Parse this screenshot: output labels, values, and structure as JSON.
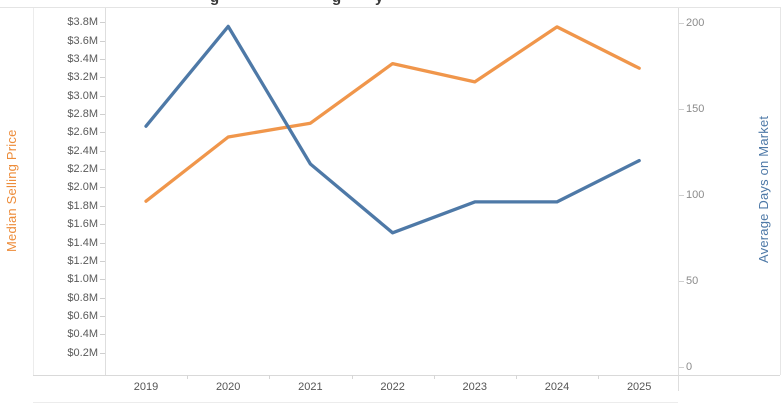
{
  "header": {
    "note": "page title cropped at top edge; only letter descenders visible",
    "cropped_title_descenders": [
      "g",
      "g",
      "y"
    ]
  },
  "left_axis": {
    "title": "Median Selling Price",
    "color": "#ED8C39",
    "tick_labels": [
      "$3.8M",
      "$3.6M",
      "$3.4M",
      "$3.2M",
      "$3.0M",
      "$2.8M",
      "$2.6M",
      "$2.4M",
      "$2.2M",
      "$2.0M",
      "$1.8M",
      "$1.6M",
      "$1.4M",
      "$1.2M",
      "$1.0M",
      "$0.8M",
      "$0.6M",
      "$0.4M",
      "$0.2M"
    ]
  },
  "right_axis": {
    "title": "Average Days on Market",
    "color": "#4E79A7",
    "tick_labels": [
      "200",
      "150",
      "100",
      "50",
      "0"
    ]
  },
  "x_axis": {
    "tick_labels": [
      "2019",
      "2020",
      "2021",
      "2022",
      "2023",
      "2024",
      "2025"
    ]
  },
  "chart_data": {
    "type": "line",
    "title": "",
    "x": [
      2019,
      2020,
      2021,
      2022,
      2023,
      2024,
      2025
    ],
    "series": [
      {
        "name": "Median Selling Price",
        "axis": "left",
        "unit": "USD millions",
        "color": "#F0964B",
        "values": [
          1.85,
          2.55,
          2.7,
          3.35,
          3.15,
          3.75,
          3.3
        ]
      },
      {
        "name": "Average Days on Market",
        "axis": "right",
        "unit": "days",
        "color": "#4E79A7",
        "values": [
          140,
          198,
          118,
          78,
          96,
          96,
          120
        ]
      }
    ],
    "left_ylim_millions": [
      0,
      3.9
    ],
    "left_tick_step_millions": 0.2,
    "right_ylim_days": [
      0,
      205
    ],
    "right_tick_step_days": 50,
    "grid": "off",
    "legend": "none"
  },
  "colors": {
    "orange_line": "#F0964B",
    "blue_line": "#4E79A7",
    "axis_line": "#DEDEDE",
    "tick_text": "#5A5A5A",
    "right_tick_text": "#8B8B8B"
  }
}
